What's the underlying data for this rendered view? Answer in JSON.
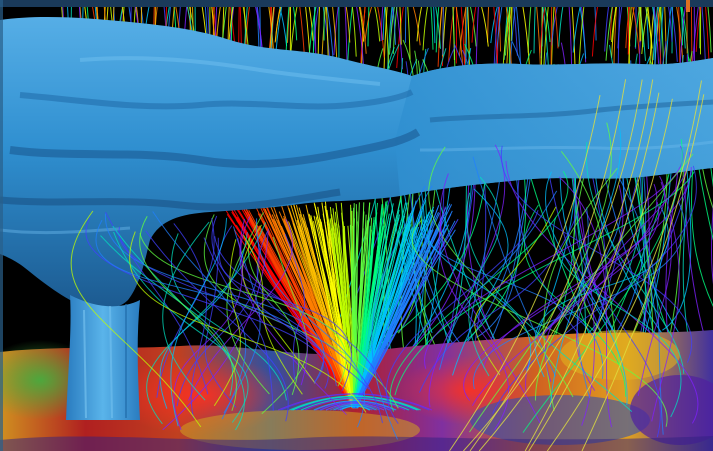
{
  "scene": {
    "description_tags": [
      "cloud-surface",
      "streamlines",
      "ground-terrain",
      "vortex-funnel"
    ],
    "colors": {
      "background": "#000000",
      "frame_top": "#1a3a5a",
      "frame_accent": "#e07020",
      "cloud_base": "#2f8fd0",
      "cloud_shadow": "#1e5f95",
      "cloud_highlight": "#5fb6ea",
      "funnel": "#3f9fd8",
      "ground_blue": "#4060b0",
      "ground_red": "#c02020",
      "ground_yellow": "#e0b020",
      "ground_green": "#40a040",
      "ground_purple": "#502090"
    },
    "streamline_palette": [
      "#ff0000",
      "#ff4000",
      "#ff8000",
      "#ffc000",
      "#ffff00",
      "#c0ff00",
      "#60ff40",
      "#00ff80",
      "#00e0c0",
      "#00c0ff",
      "#2080ff",
      "#4040ff",
      "#8020ff"
    ]
  }
}
